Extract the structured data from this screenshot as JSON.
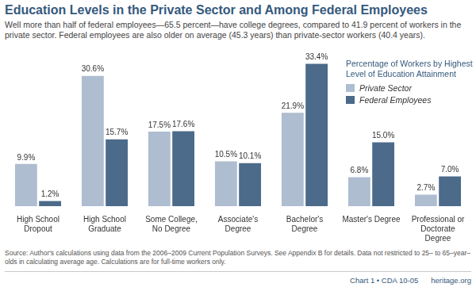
{
  "chart_data": {
    "type": "bar",
    "title": "Education Levels in the Private Sector and Among Federal Employees",
    "subtitle": "Well more than half of federal employees—65.5 percent—have college degrees, compared to 41.9 percent of workers in the private sector. Federal employees are also older on average (45.3 years) than private-sector workers (40.4 years).",
    "legend_title": "Percentage of Workers by Highest Level of Education Attainment",
    "source": "Source: Author's calculations using data from the 2006–2009 Current Population Surveys. See Appendix B for details. Data not restricted to 25– to 65–year–olds in calculating average age. Calculations are for full-time workers only.",
    "footer": [
      "Chart 1 • CDA 10-05",
      "heritage.org"
    ],
    "categories": [
      "High School Dropout",
      "High School Graduate",
      "Some College, No Degree",
      "Associate's Degree",
      "Bachelor's Degree",
      "Master's Degree",
      "Professional or Doctorate Degree"
    ],
    "series": [
      {
        "name": "Private Sector",
        "color": "#aebdd0",
        "values": [
          9.9,
          30.6,
          17.5,
          10.5,
          21.9,
          6.8,
          2.7
        ],
        "value_labels": [
          "9.9%",
          "30.6%",
          "17.5%",
          "10.5%",
          "21.9%",
          "6.8%",
          "2.7%"
        ]
      },
      {
        "name": "Federal Employees",
        "color": "#4c6a89",
        "values": [
          1.2,
          15.7,
          17.6,
          10.1,
          33.4,
          15.0,
          7.0
        ],
        "value_labels": [
          "1.2%",
          "15.7%",
          "17.6%",
          "10.1%",
          "33.4%",
          "15.0%",
          "7.0%"
        ]
      }
    ],
    "legend": "upper right",
    "data_labels": true,
    "tick_labels": "x",
    "grid": false
  }
}
